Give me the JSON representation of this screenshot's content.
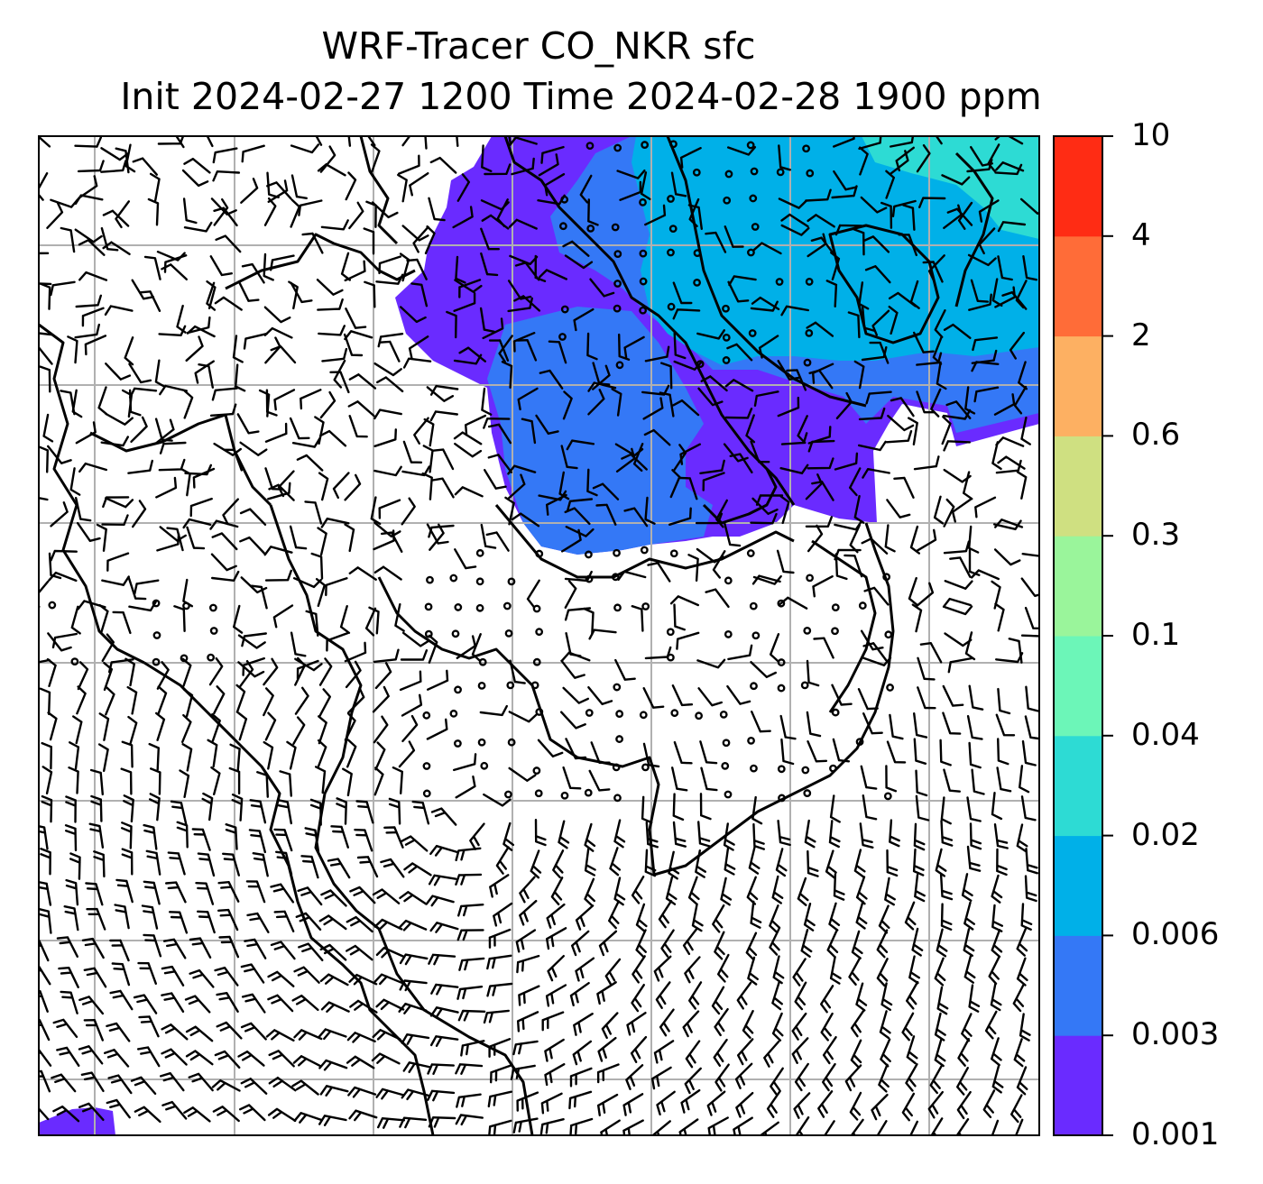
{
  "title": {
    "line1": "WRF-Tracer CO_NKR sfc",
    "line2": "Init 2024-02-27 1200 Time 2024-02-28 1900 ppm"
  },
  "colorbar": {
    "ticks": [
      "0.001",
      "0.003",
      "0.006",
      "0.02",
      "0.04",
      "0.1",
      "0.3",
      "0.6",
      "2",
      "4",
      "10"
    ],
    "colors": [
      "#6a2bff",
      "#3478f6",
      "#00b0e8",
      "#2ddbd4",
      "#6cf6b8",
      "#9af59b",
      "#cfe081",
      "#fdb062",
      "#ff6c38",
      "#ff2c14"
    ]
  },
  "map": {
    "field": "CO_NKR sfc",
    "units": "ppm",
    "features": [
      "coastlines",
      "lat-lon gridlines",
      "wind barbs",
      "calm-wind circles"
    ],
    "colors": {
      "level_0_001": "#6a2bff",
      "level_0_003": "#3478f6",
      "level_0_006": "#00b0e8",
      "level_0_02": "#2ddbd4",
      "gridline": "#b0b0b0"
    }
  }
}
